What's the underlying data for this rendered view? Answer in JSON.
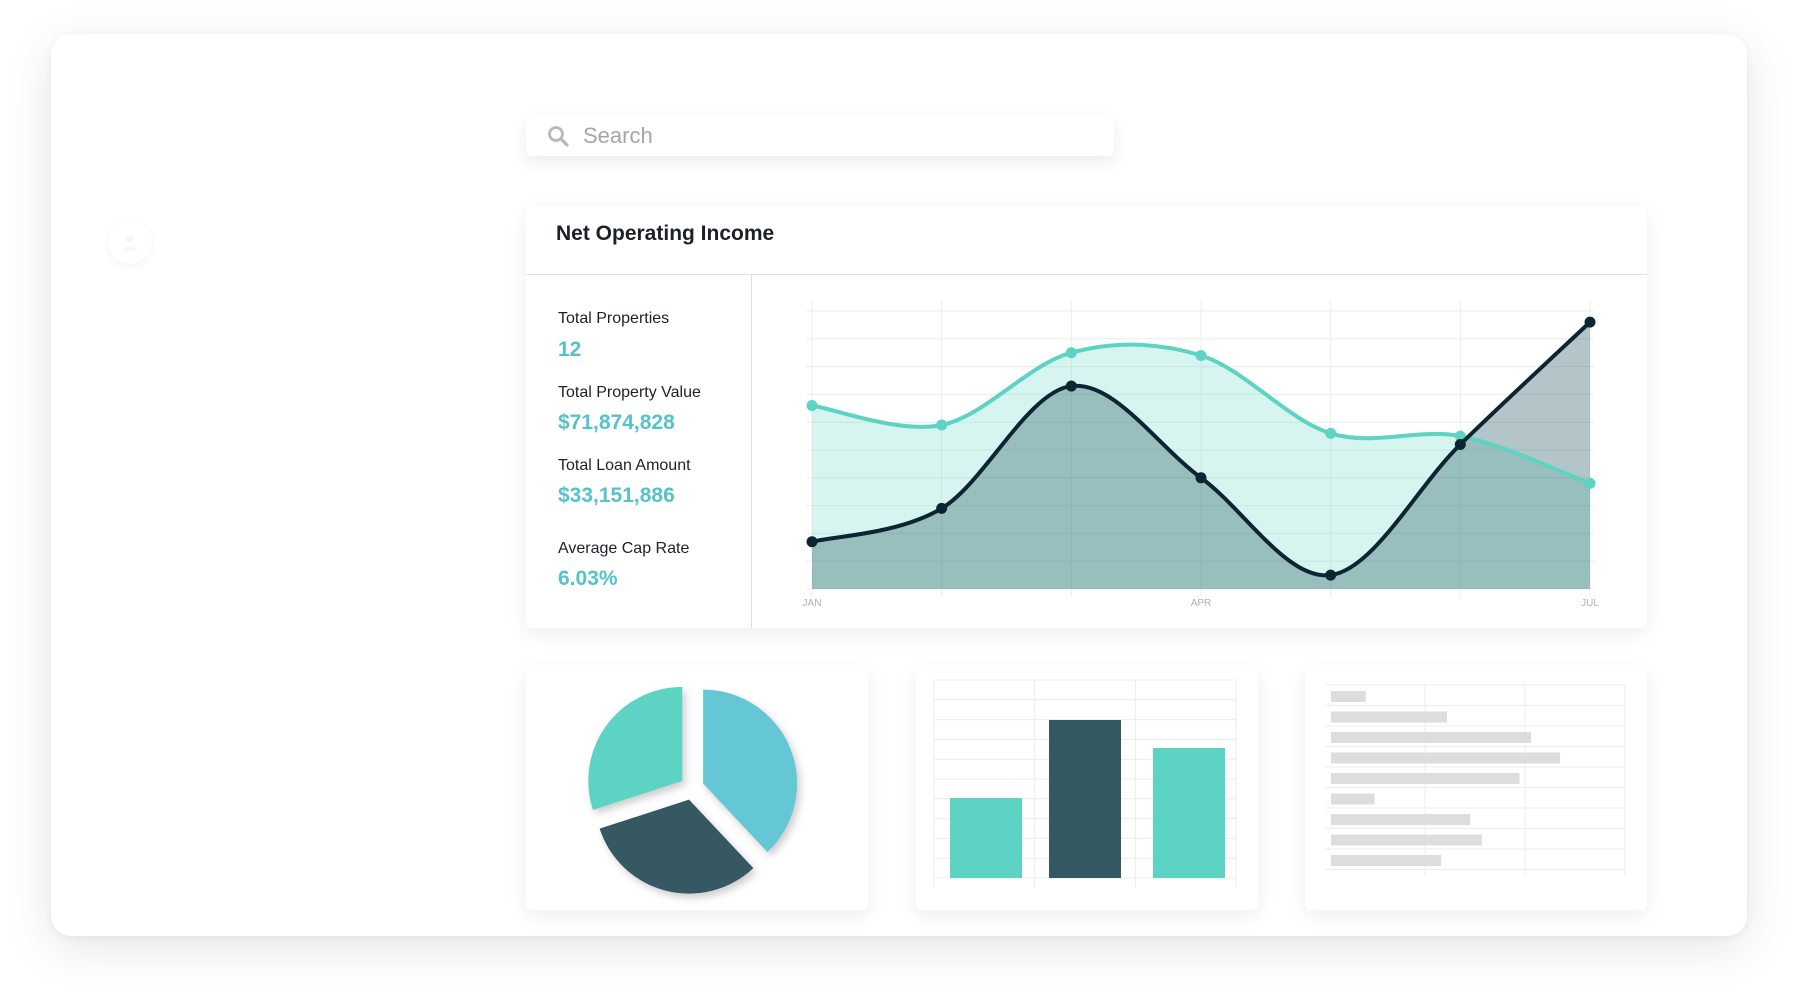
{
  "search": {
    "placeholder": "Search",
    "icon": "search-icon"
  },
  "noi": {
    "title": "Net Operating Income",
    "stats": [
      {
        "label": "Total Properties",
        "value": "12"
      },
      {
        "label": "Total Property Value",
        "value": "$71,874,828"
      },
      {
        "label": "Total Loan Amount",
        "value": "$33,151,886"
      },
      {
        "label": "Average Cap Rate",
        "value": "6.03%"
      }
    ]
  },
  "colors": {
    "teal": "#56c2c9",
    "mint": "#5dd3c3",
    "navy": "#0d2533",
    "dark_teal": "#345862"
  },
  "chart_data": [
    {
      "type": "area",
      "title": "Net Operating Income",
      "x_tick_labels": [
        "JAN",
        "APR",
        "JUL"
      ],
      "ylim": [
        0,
        10
      ],
      "grid": true,
      "series": [
        {
          "color": "#5dd3c3",
          "values": [
            6.6,
            5.9,
            8.5,
            8.4,
            5.6,
            5.5,
            3.8
          ]
        },
        {
          "color": "#0d2533",
          "values": [
            1.7,
            2.9,
            7.3,
            4.0,
            0.5,
            5.2,
            9.6
          ]
        }
      ]
    },
    {
      "type": "pie",
      "values": [
        38,
        32,
        30
      ],
      "colors": [
        "#65c7d5",
        "#345862",
        "#5dd3c3"
      ]
    },
    {
      "type": "bar",
      "values": [
        40,
        79,
        65
      ],
      "colors": [
        "#5dd3c3",
        "#345862",
        "#5dd3c3"
      ],
      "ylim": [
        0,
        100
      ],
      "grid": true
    },
    {
      "type": "table",
      "values": [
        12,
        40,
        69,
        79,
        65,
        15,
        48,
        52,
        38
      ]
    }
  ]
}
